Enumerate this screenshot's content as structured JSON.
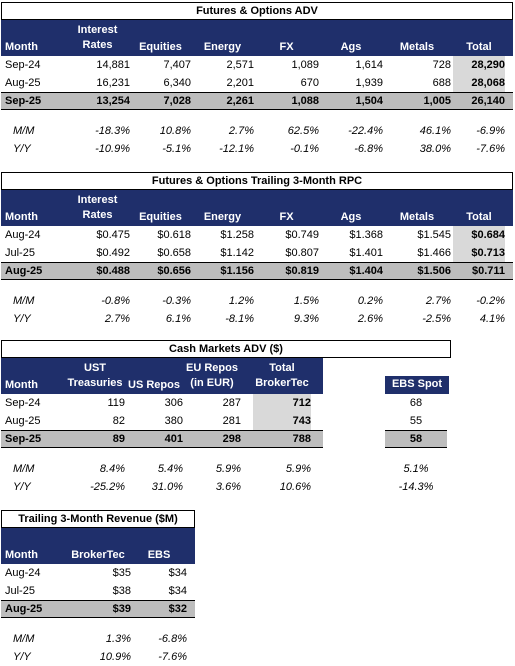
{
  "futures_adv": {
    "title": "Futures & Options ADV",
    "columns": [
      "Month",
      "Interest\nRates",
      "Equities",
      "Energy",
      "FX",
      "Ags",
      "Metals",
      "Total"
    ],
    "rows": [
      [
        "Sep-24",
        "14,881",
        "7,407",
        "2,571",
        "1,089",
        "1,614",
        "728",
        "28,290"
      ],
      [
        "Aug-25",
        "16,231",
        "6,340",
        "2,201",
        "670",
        "1,939",
        "688",
        "28,068"
      ],
      [
        "Sep-25",
        "13,254",
        "7,028",
        "2,261",
        "1,088",
        "1,504",
        "1,005",
        "26,140"
      ]
    ],
    "stats": [
      [
        "M/M",
        "-18.3%",
        "10.8%",
        "2.7%",
        "62.5%",
        "-22.4%",
        "46.1%",
        "-6.9%"
      ],
      [
        "Y/Y",
        "-10.9%",
        "-5.1%",
        "-12.1%",
        "-0.1%",
        "-6.8%",
        "38.0%",
        "-7.6%"
      ]
    ]
  },
  "futures_rpc": {
    "title": "Futures & Options Trailing 3-Month RPC",
    "columns": [
      "Month",
      "Interest\nRates",
      "Equities",
      "Energy",
      "FX",
      "Ags",
      "Metals",
      "Total"
    ],
    "rows": [
      [
        "Aug-24",
        "$0.475",
        "$0.618",
        "$1.258",
        "$0.749",
        "$1.368",
        "$1.545",
        "$0.684"
      ],
      [
        "Jul-25",
        "$0.492",
        "$0.658",
        "$1.142",
        "$0.807",
        "$1.401",
        "$1.466",
        "$0.713"
      ],
      [
        "Aug-25",
        "$0.488",
        "$0.656",
        "$1.156",
        "$0.819",
        "$1.404",
        "$1.506",
        "$0.711"
      ]
    ],
    "stats": [
      [
        "M/M",
        "-0.8%",
        "-0.3%",
        "1.2%",
        "1.5%",
        "0.2%",
        "2.7%",
        "-0.2%"
      ],
      [
        "Y/Y",
        "2.7%",
        "6.1%",
        "-8.1%",
        "9.3%",
        "2.6%",
        "-2.5%",
        "4.1%"
      ]
    ]
  },
  "cash_adv": {
    "title": "Cash Markets ADV ($)",
    "columns": [
      "Month",
      "UST\nTreasuries",
      "US Repos",
      "EU Repos\n(in EUR)",
      "Total\nBrokerTec"
    ],
    "ebs_header": "EBS Spot",
    "rows": [
      [
        "Sep-24",
        "119",
        "306",
        "287",
        "712",
        "68"
      ],
      [
        "Aug-25",
        "82",
        "380",
        "281",
        "743",
        "55"
      ],
      [
        "Sep-25",
        "89",
        "401",
        "298",
        "788",
        "58"
      ]
    ],
    "stats": [
      [
        "M/M",
        "8.4%",
        "5.4%",
        "5.9%",
        "5.9%",
        "5.1%"
      ],
      [
        "Y/Y",
        "-25.2%",
        "31.0%",
        "3.6%",
        "10.6%",
        "-14.3%"
      ]
    ]
  },
  "revenue": {
    "title": "Trailing 3-Month Revenue ($M)",
    "columns": [
      "Month",
      "BrokerTec",
      "EBS"
    ],
    "rows": [
      [
        "Aug-24",
        "$35",
        "$34"
      ],
      [
        "Jul-25",
        "$38",
        "$34"
      ],
      [
        "Aug-25",
        "$39",
        "$32"
      ]
    ],
    "stats": [
      [
        "M/M",
        "1.3%",
        "-6.8%"
      ],
      [
        "Y/Y",
        "10.9%",
        "-7.6%"
      ]
    ]
  }
}
